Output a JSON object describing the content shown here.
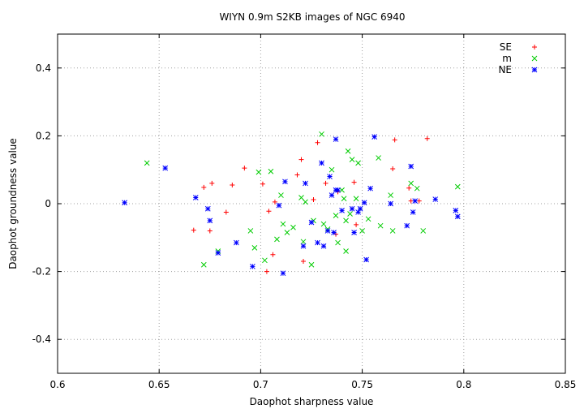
{
  "chart_data": {
    "type": "scatter",
    "title": "WIYN 0.9m S2KB images of NGC 6940",
    "xlabel": "Daophot sharpness value",
    "ylabel": "Daophot groundness value",
    "xlim": [
      0.6,
      0.85
    ],
    "ylim": [
      -0.5,
      0.5
    ],
    "xticks": [
      "0.6",
      "0.65",
      "0.7",
      "0.75",
      "0.8",
      "0.85"
    ],
    "yticks": [
      "-0.4",
      "-0.2",
      "0",
      "0.2",
      "0.4"
    ],
    "grid": true,
    "legend_position": "top-right",
    "series": [
      {
        "name": "SE",
        "marker": "plus",
        "color": "#ff0000",
        "points": [
          [
            0.667,
            -0.078
          ],
          [
            0.672,
            0.048
          ],
          [
            0.675,
            -0.08
          ],
          [
            0.676,
            0.06
          ],
          [
            0.683,
            -0.025
          ],
          [
            0.686,
            0.055
          ],
          [
            0.692,
            0.105
          ],
          [
            0.701,
            0.058
          ],
          [
            0.703,
            -0.2
          ],
          [
            0.704,
            -0.022
          ],
          [
            0.706,
            -0.15
          ],
          [
            0.707,
            0.005
          ],
          [
            0.718,
            0.085
          ],
          [
            0.72,
            0.13
          ],
          [
            0.721,
            -0.17
          ],
          [
            0.726,
            0.012
          ],
          [
            0.728,
            0.18
          ],
          [
            0.732,
            0.06
          ],
          [
            0.737,
            -0.09
          ],
          [
            0.738,
            0.035
          ],
          [
            0.746,
            0.063
          ],
          [
            0.747,
            -0.062
          ],
          [
            0.765,
            0.103
          ],
          [
            0.766,
            0.188
          ],
          [
            0.773,
            0.046
          ],
          [
            0.774,
            0.008
          ],
          [
            0.782,
            0.192
          ],
          [
            0.778,
            0.008
          ]
        ]
      },
      {
        "name": "m",
        "marker": "cross",
        "color": "#00cc00",
        "points": [
          [
            0.644,
            0.12
          ],
          [
            0.672,
            -0.18
          ],
          [
            0.679,
            -0.14
          ],
          [
            0.695,
            -0.08
          ],
          [
            0.697,
            -0.13
          ],
          [
            0.699,
            0.093
          ],
          [
            0.702,
            -0.167
          ],
          [
            0.705,
            0.095
          ],
          [
            0.708,
            -0.105
          ],
          [
            0.71,
            0.025
          ],
          [
            0.711,
            -0.06
          ],
          [
            0.713,
            -0.085
          ],
          [
            0.716,
            -0.07
          ],
          [
            0.72,
            0.018
          ],
          [
            0.721,
            -0.112
          ],
          [
            0.722,
            0.005
          ],
          [
            0.725,
            -0.18
          ],
          [
            0.726,
            -0.05
          ],
          [
            0.73,
            0.205
          ],
          [
            0.731,
            -0.06
          ],
          [
            0.733,
            -0.075
          ],
          [
            0.735,
            0.1
          ],
          [
            0.737,
            -0.035
          ],
          [
            0.738,
            -0.115
          ],
          [
            0.74,
            0.04
          ],
          [
            0.741,
            0.015
          ],
          [
            0.742,
            -0.05
          ],
          [
            0.742,
            -0.14
          ],
          [
            0.743,
            0.155
          ],
          [
            0.744,
            -0.03
          ],
          [
            0.745,
            0.13
          ],
          [
            0.747,
            0.015
          ],
          [
            0.748,
            0.12
          ],
          [
            0.75,
            -0.08
          ],
          [
            0.753,
            -0.045
          ],
          [
            0.758,
            0.135
          ],
          [
            0.759,
            -0.065
          ],
          [
            0.764,
            0.025
          ],
          [
            0.765,
            -0.08
          ],
          [
            0.774,
            0.06
          ],
          [
            0.777,
            0.045
          ],
          [
            0.78,
            -0.08
          ],
          [
            0.797,
            0.05
          ]
        ]
      },
      {
        "name": "NE",
        "marker": "star",
        "color": "#0000ff",
        "points": [
          [
            0.633,
            0.003
          ],
          [
            0.653,
            0.105
          ],
          [
            0.668,
            0.018
          ],
          [
            0.674,
            -0.015
          ],
          [
            0.675,
            -0.05
          ],
          [
            0.679,
            -0.145
          ],
          [
            0.688,
            -0.115
          ],
          [
            0.696,
            -0.185
          ],
          [
            0.709,
            -0.005
          ],
          [
            0.711,
            -0.205
          ],
          [
            0.712,
            0.065
          ],
          [
            0.721,
            -0.125
          ],
          [
            0.722,
            0.06
          ],
          [
            0.725,
            -0.055
          ],
          [
            0.728,
            -0.115
          ],
          [
            0.73,
            0.12
          ],
          [
            0.731,
            -0.125
          ],
          [
            0.733,
            -0.08
          ],
          [
            0.734,
            0.08
          ],
          [
            0.735,
            0.025
          ],
          [
            0.736,
            -0.085
          ],
          [
            0.737,
            0.19
          ],
          [
            0.737,
            0.04
          ],
          [
            0.738,
            0.04
          ],
          [
            0.74,
            -0.02
          ],
          [
            0.745,
            -0.015
          ],
          [
            0.746,
            -0.085
          ],
          [
            0.748,
            -0.025
          ],
          [
            0.749,
            -0.015
          ],
          [
            0.751,
            0.003
          ],
          [
            0.752,
            -0.165
          ],
          [
            0.754,
            0.045
          ],
          [
            0.756,
            0.197
          ],
          [
            0.764,
            0.0
          ],
          [
            0.772,
            -0.065
          ],
          [
            0.774,
            0.11
          ],
          [
            0.775,
            -0.025
          ],
          [
            0.776,
            0.008
          ],
          [
            0.786,
            0.013
          ],
          [
            0.796,
            -0.02
          ],
          [
            0.797,
            -0.038
          ]
        ]
      }
    ]
  }
}
